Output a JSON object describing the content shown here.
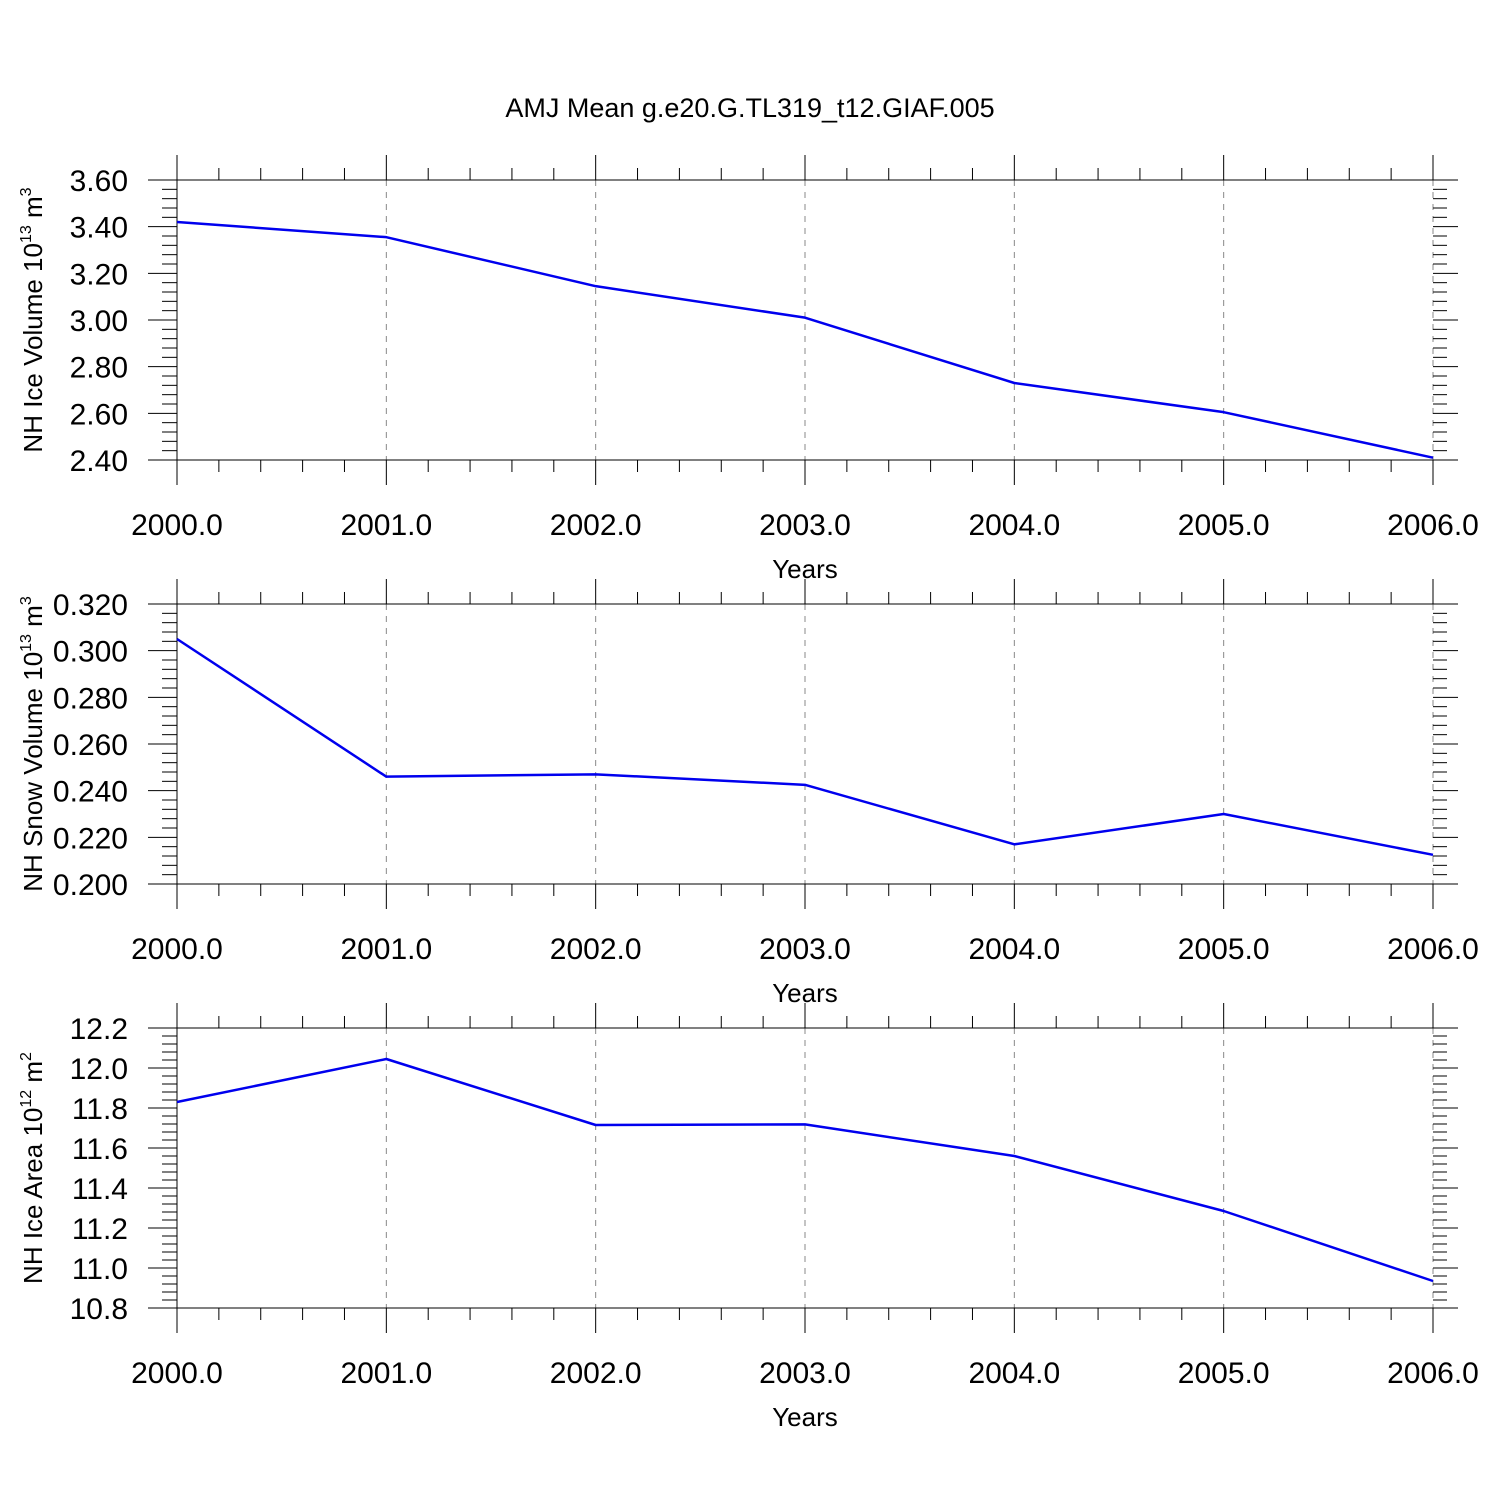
{
  "title": "AMJ Mean g.e20.G.TL319_t12.GIAF.005",
  "line_color": "#0000ee",
  "chart_data": [
    {
      "type": "line",
      "xlabel": "Years",
      "ylabel": "NH Ice Volume 10",
      "ylabel_exp": "13",
      "ylabel_unit": " m",
      "ylabel_unit_exp": "3",
      "x": [
        2000,
        2001,
        2002,
        2003,
        2004,
        2005,
        2006
      ],
      "xtick_labels": [
        "2000.0",
        "2001.0",
        "2002.0",
        "2003.0",
        "2004.0",
        "2005.0",
        "2006.0"
      ],
      "values": [
        3.42,
        3.355,
        3.145,
        3.01,
        2.73,
        2.605,
        2.41
      ],
      "ylim": [
        2.4,
        3.6
      ],
      "ytick_values": [
        2.4,
        2.6,
        2.8,
        3.0,
        3.2,
        3.4,
        3.6
      ],
      "ytick_labels": [
        "2.40",
        "2.60",
        "2.80",
        "3.00",
        "3.20",
        "3.40",
        "3.60"
      ],
      "grid": "x-dashed"
    },
    {
      "type": "line",
      "xlabel": "Years",
      "ylabel": "NH Snow Volume 10",
      "ylabel_exp": "13",
      "ylabel_unit": " m",
      "ylabel_unit_exp": "3",
      "x": [
        2000,
        2001,
        2002,
        2003,
        2004,
        2005,
        2006
      ],
      "xtick_labels": [
        "2000.0",
        "2001.0",
        "2002.0",
        "2003.0",
        "2004.0",
        "2005.0",
        "2006.0"
      ],
      "values": [
        0.305,
        0.246,
        0.247,
        0.2425,
        0.217,
        0.23,
        0.2125
      ],
      "ylim": [
        0.2,
        0.32
      ],
      "ytick_values": [
        0.2,
        0.22,
        0.24,
        0.26,
        0.28,
        0.3,
        0.32
      ],
      "ytick_labels": [
        "0.200",
        "0.220",
        "0.240",
        "0.260",
        "0.280",
        "0.300",
        "0.320"
      ],
      "grid": "x-dashed"
    },
    {
      "type": "line",
      "xlabel": "Years",
      "ylabel": "NH Ice Area 10",
      "ylabel_exp": "12",
      "ylabel_unit": " m",
      "ylabel_unit_exp": "2",
      "x": [
        2000,
        2001,
        2002,
        2003,
        2004,
        2005,
        2006
      ],
      "xtick_labels": [
        "2000.0",
        "2001.0",
        "2002.0",
        "2003.0",
        "2004.0",
        "2005.0",
        "2006.0"
      ],
      "values": [
        11.83,
        12.045,
        11.715,
        11.718,
        11.56,
        11.285,
        10.935
      ],
      "ylim": [
        10.8,
        12.2
      ],
      "ytick_values": [
        10.8,
        11.0,
        11.2,
        11.4,
        11.6,
        11.8,
        12.0,
        12.2
      ],
      "ytick_labels": [
        "10.8",
        "11.0",
        "11.2",
        "11.4",
        "11.6",
        "11.8",
        "12.0",
        "12.2"
      ],
      "grid": "x-dashed"
    }
  ]
}
